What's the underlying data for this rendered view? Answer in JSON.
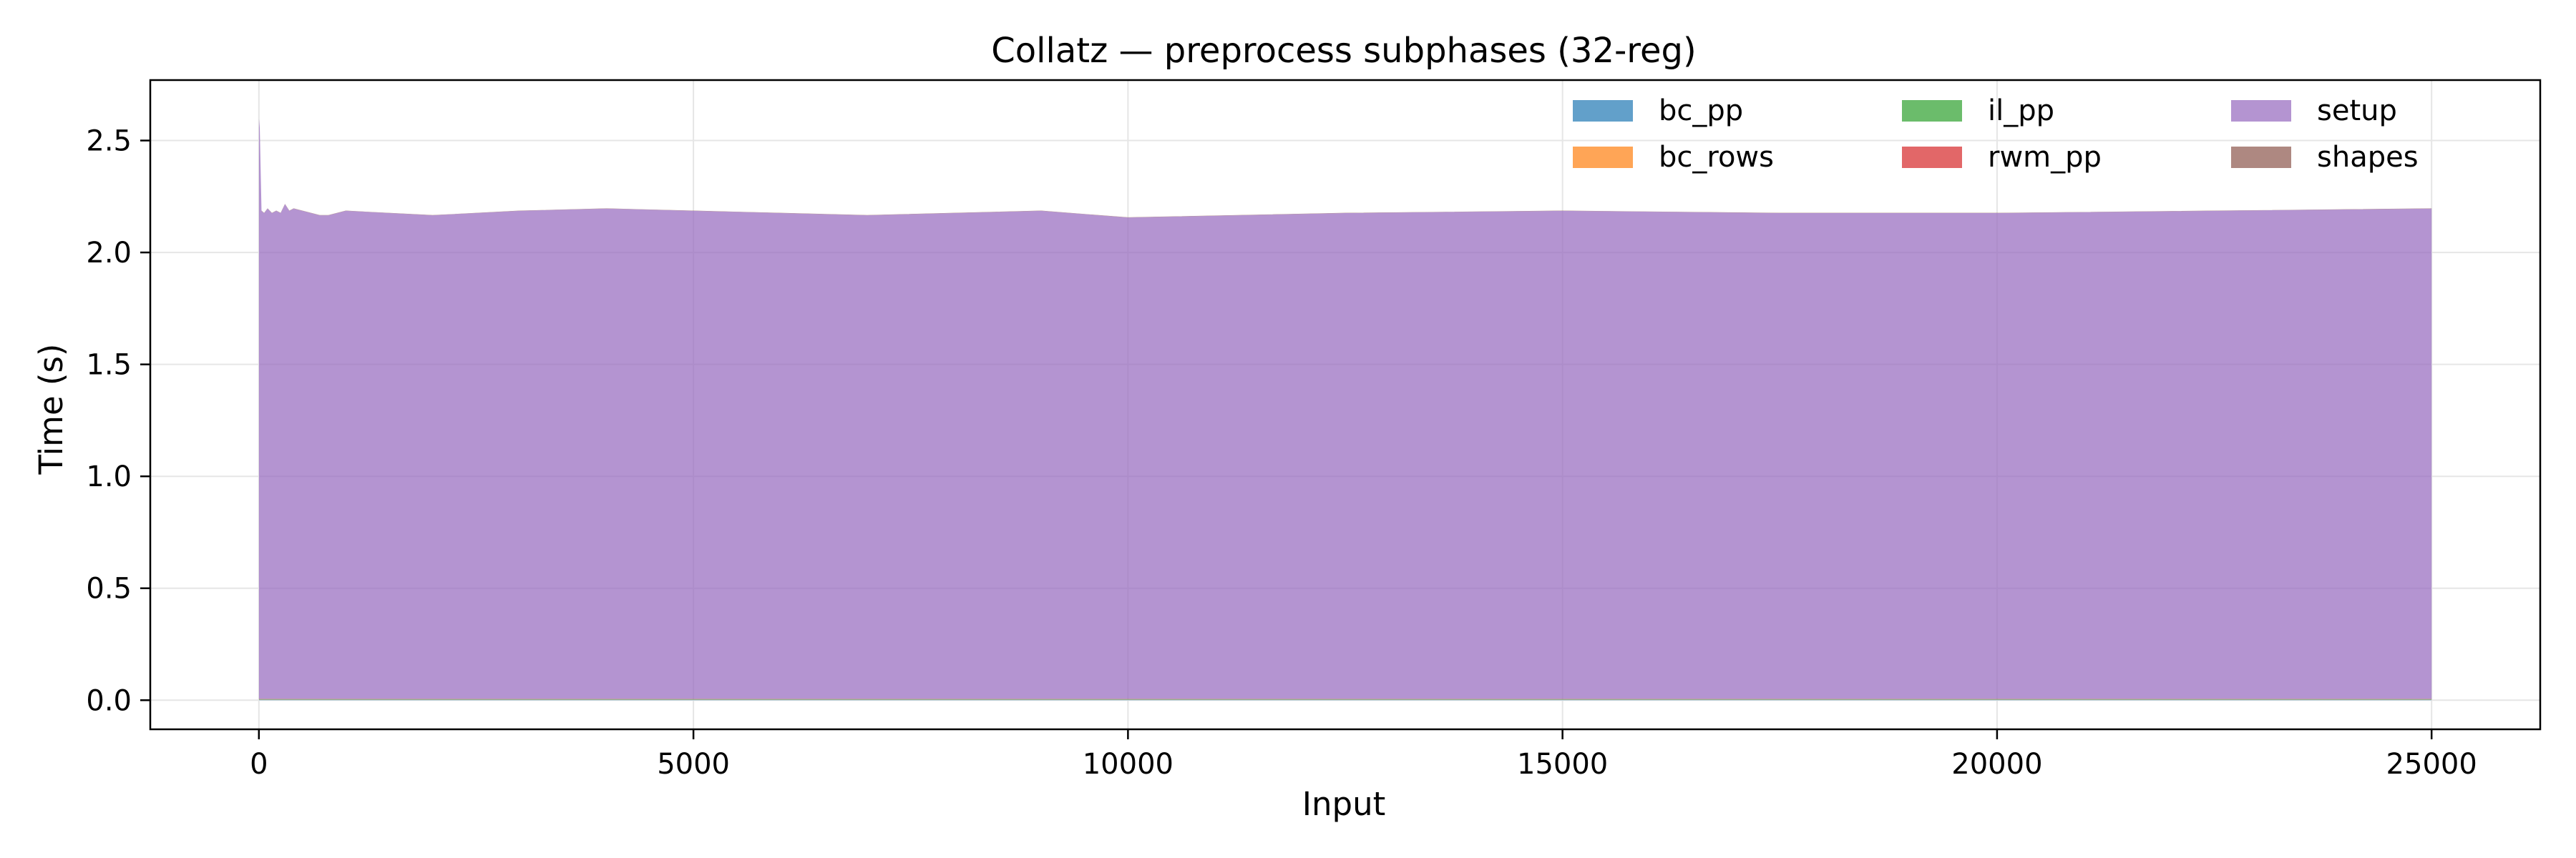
{
  "chart_data": {
    "type": "area",
    "stacked": true,
    "title": "Collatz — preprocess subphases (32-reg)",
    "xlabel": "Input",
    "ylabel": "Time (s)",
    "xlim": [
      -1250,
      26250
    ],
    "ylim": [
      -0.13,
      2.77
    ],
    "xticks": [
      0,
      5000,
      10000,
      15000,
      20000,
      25000
    ],
    "xtick_labels": [
      "0",
      "5000",
      "10000",
      "15000",
      "20000",
      "25000"
    ],
    "yticks": [
      0.0,
      0.5,
      1.0,
      1.5,
      2.0,
      2.5
    ],
    "ytick_labels": [
      "0.0",
      "0.5",
      "1.0",
      "1.5",
      "2.0",
      "2.5"
    ],
    "grid": true,
    "legend_position": "top-right",
    "legend_columns": 4,
    "x": [
      1,
      10,
      30,
      60,
      100,
      150,
      200,
      250,
      300,
      350,
      400,
      500,
      600,
      700,
      800,
      900,
      1000,
      2000,
      3000,
      4000,
      5000,
      6000,
      7000,
      8000,
      9000,
      10000,
      12500,
      15000,
      17500,
      20000,
      22500,
      25000
    ],
    "series": [
      {
        "name": "bc_pp",
        "color": "#1f77b4",
        "values": [
          0.002,
          0.002,
          0.002,
          0.002,
          0.002,
          0.002,
          0.002,
          0.002,
          0.002,
          0.002,
          0.002,
          0.002,
          0.002,
          0.002,
          0.002,
          0.002,
          0.002,
          0.002,
          0.002,
          0.002,
          0.002,
          0.002,
          0.002,
          0.002,
          0.002,
          0.002,
          0.002,
          0.002,
          0.002,
          0.002,
          0.002,
          0.002
        ]
      },
      {
        "name": "bc_rows",
        "color": "#ff7f0e",
        "values": [
          0.001,
          0.001,
          0.001,
          0.001,
          0.001,
          0.001,
          0.001,
          0.001,
          0.001,
          0.001,
          0.001,
          0.001,
          0.001,
          0.001,
          0.001,
          0.001,
          0.001,
          0.001,
          0.001,
          0.001,
          0.001,
          0.001,
          0.001,
          0.001,
          0.001,
          0.001,
          0.001,
          0.001,
          0.001,
          0.001,
          0.001,
          0.001
        ]
      },
      {
        "name": "il_pp",
        "color": "#2ca02c",
        "values": [
          0.002,
          0.002,
          0.002,
          0.002,
          0.002,
          0.002,
          0.002,
          0.002,
          0.002,
          0.002,
          0.002,
          0.002,
          0.002,
          0.002,
          0.002,
          0.002,
          0.002,
          0.002,
          0.002,
          0.002,
          0.002,
          0.002,
          0.002,
          0.002,
          0.002,
          0.002,
          0.002,
          0.002,
          0.002,
          0.002,
          0.002,
          0.002
        ]
      },
      {
        "name": "rwm_pp",
        "color": "#d62728",
        "values": [
          0.001,
          0.001,
          0.001,
          0.001,
          0.001,
          0.001,
          0.001,
          0.001,
          0.001,
          0.001,
          0.001,
          0.001,
          0.001,
          0.001,
          0.001,
          0.001,
          0.001,
          0.001,
          0.001,
          0.001,
          0.001,
          0.001,
          0.001,
          0.001,
          0.001,
          0.001,
          0.001,
          0.001,
          0.001,
          0.001,
          0.001,
          0.001
        ]
      },
      {
        "name": "setup",
        "color": "#9467bd",
        "values": [
          2.59,
          2.55,
          2.18,
          2.17,
          2.19,
          2.17,
          2.18,
          2.17,
          2.21,
          2.18,
          2.19,
          2.18,
          2.17,
          2.16,
          2.16,
          2.17,
          2.18,
          2.16,
          2.18,
          2.19,
          2.18,
          2.17,
          2.16,
          2.17,
          2.18,
          2.15,
          2.17,
          2.18,
          2.17,
          2.17,
          2.18,
          2.19
        ]
      },
      {
        "name": "shapes",
        "color": "#8c564b",
        "values": [
          0.001,
          0.001,
          0.001,
          0.001,
          0.001,
          0.001,
          0.001,
          0.001,
          0.001,
          0.001,
          0.001,
          0.001,
          0.001,
          0.001,
          0.001,
          0.001,
          0.001,
          0.001,
          0.001,
          0.001,
          0.001,
          0.001,
          0.001,
          0.001,
          0.001,
          0.001,
          0.001,
          0.001,
          0.001,
          0.001,
          0.001,
          0.001
        ]
      }
    ]
  }
}
